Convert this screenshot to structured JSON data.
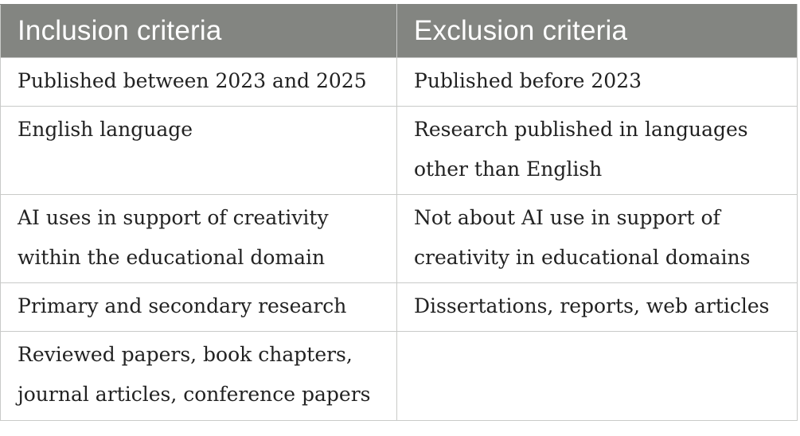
{
  "table": {
    "headers": [
      "Inclusion criteria",
      "Exclusion criteria"
    ],
    "rows": [
      {
        "inclusion": "Published between 2023 and 2025",
        "exclusion": "Published before 2023"
      },
      {
        "inclusion": "English language",
        "exclusion": "Research published in languages other than English"
      },
      {
        "inclusion": "AI uses in support of creativity within the educational domain",
        "exclusion": "Not about AI use in support of creativity in educational domains"
      },
      {
        "inclusion": "Primary and secondary research",
        "exclusion": "Dissertations, reports, web articles"
      },
      {
        "inclusion": "Reviewed papers, book chapters, journal articles, conference papers",
        "exclusion": ""
      }
    ]
  },
  "colors": {
    "header_background": "#838581",
    "header_text": "#ffffff",
    "border": "#c9cac8",
    "body_text": "#222222"
  }
}
